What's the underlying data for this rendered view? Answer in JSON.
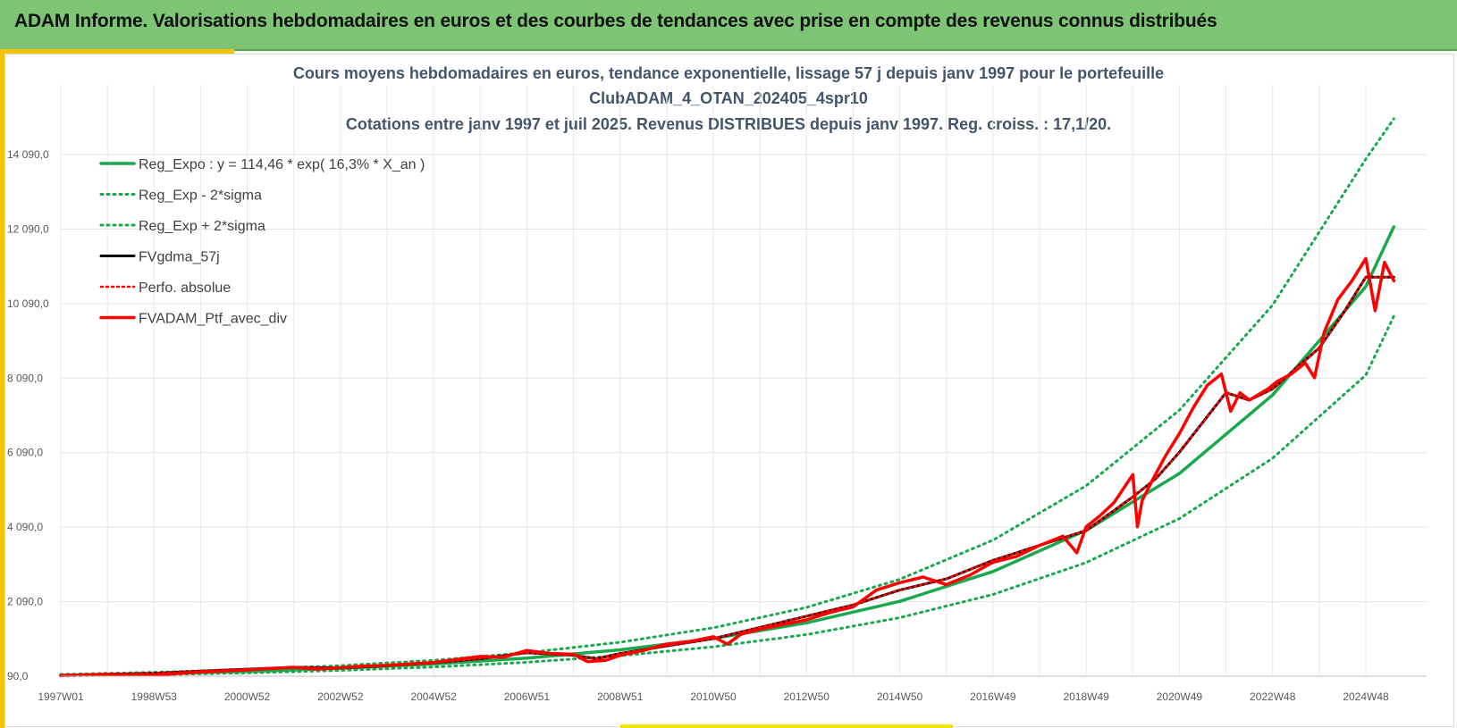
{
  "banner": {
    "title": "ADAM Informe. Valorisations hebdomadaires en euros et des courbes de tendances avec prise en compte des revenus connus distribués"
  },
  "colors": {
    "banner_bg": "#7dc574",
    "accent_yellow": "#f2c500",
    "trend_green": "#1aa84e",
    "fv_black": "#000000",
    "portfolio_red": "#ff0000",
    "title_text": "#44546a"
  },
  "chart_data": {
    "type": "line",
    "title": "Cours moyens hebdomadaires  en euros, tendance exponentielle, lissage 57 j depuis janv 1997 pour le portefeuille",
    "subtitle": "ClubADAM_4_OTAN_202405_4spr10",
    "subtitle2": "Cotations  entre janv 1997 et juil 2025. Revenus DISTRIBUES depuis janv 1997. Reg. croiss. : 17,1/20.",
    "xlabel": "",
    "ylabel": "",
    "ylim": [
      90,
      14790
    ],
    "xlim": [
      1997.0,
      2025.6
    ],
    "grid": true,
    "legend_position": "top-left",
    "y_ticks": [
      "90,0",
      "2 090,0",
      "4 090,0",
      "6 090,0",
      "8 090,0",
      "10 090,0",
      "12 090,0",
      "14 090,0"
    ],
    "y_tick_values": [
      90,
      2090,
      4090,
      6090,
      8090,
      10090,
      12090,
      14090
    ],
    "x_ticks": [
      "1997W01",
      "1998W53",
      "2000W52",
      "2002W52",
      "2004W52",
      "2006W51",
      "2008W51",
      "2010W50",
      "2012W50",
      "2014W50",
      "2016W49",
      "2018W49",
      "2020W49",
      "2022W48",
      "2024W48"
    ],
    "x_tick_values": [
      1997.0,
      1999.0,
      2001.0,
      2003.0,
      2005.0,
      2007.0,
      2009.0,
      2011.0,
      2013.0,
      2015.0,
      2017.0,
      2019.0,
      2021.0,
      2023.0,
      2025.0
    ],
    "series": [
      {
        "name": "Reg_Expo : y = 114,46 * exp( 16,3% *  X_an )",
        "style": "solid-green",
        "x": [
          1997,
          1999,
          2001,
          2003,
          2005,
          2007,
          2009,
          2011,
          2013,
          2015,
          2017,
          2019,
          2021,
          2023,
          2025,
          2025.6
        ],
        "values": [
          115,
          159,
          219,
          303,
          418,
          577,
          797,
          1101,
          1520,
          2099,
          2899,
          4004,
          5530,
          7637,
          10547,
          12150
        ]
      },
      {
        "name": "Reg_Exp - 2*sigma",
        "style": "dotted-green",
        "x": [
          1997,
          1999,
          2001,
          2003,
          2005,
          2007,
          2009,
          2011,
          2013,
          2015,
          2017,
          2019,
          2021,
          2023,
          2025,
          2025.6
        ],
        "values": [
          95,
          130,
          178,
          245,
          337,
          464,
          638,
          878,
          1208,
          1660,
          2283,
          3140,
          4318,
          5940,
          8170,
          9750
        ]
      },
      {
        "name": "Reg_Exp + 2*sigma",
        "style": "dotted-green",
        "x": [
          1997,
          1999,
          2001,
          2003,
          2005,
          2007,
          2009,
          2011,
          2013,
          2015,
          2017,
          2019,
          2021,
          2023,
          2025,
          2025.6
        ],
        "values": [
          138,
          192,
          267,
          372,
          517,
          720,
          1000,
          1390,
          1935,
          2690,
          3740,
          5200,
          7230,
          10050,
          13970,
          15050
        ]
      },
      {
        "name": "FVgdma_57j",
        "style": "solid-black",
        "x": [
          1997,
          1998,
          1999,
          2000,
          2001,
          2002,
          2003,
          2004,
          2005,
          2006,
          2007,
          2008,
          2008.5,
          2009,
          2010,
          2011,
          2012,
          2013,
          2014,
          2015,
          2016,
          2017,
          2018,
          2019,
          2020,
          2020.5,
          2021,
          2022,
          2022.5,
          2023,
          2024,
          2024.5,
          2025,
          2025.6
        ],
        "values": [
          110,
          140,
          170,
          230,
          280,
          330,
          310,
          370,
          450,
          560,
          720,
          650,
          560,
          700,
          900,
          1100,
          1400,
          1700,
          2000,
          2400,
          2700,
          3200,
          3600,
          4000,
          4900,
          5400,
          6100,
          7700,
          7500,
          7800,
          8900,
          9800,
          10800,
          10800
        ]
      },
      {
        "name": "Perfo. absolue",
        "style": "dotted-red",
        "x": [
          1997,
          1998,
          1999,
          2000,
          2001,
          2002,
          2003,
          2004,
          2005,
          2006,
          2007,
          2008,
          2008.5,
          2009,
          2010,
          2011,
          2012,
          2013,
          2014,
          2015,
          2016,
          2017,
          2018,
          2019,
          2020,
          2020.5,
          2021,
          2022,
          2022.5,
          2023,
          2024,
          2024.5,
          2025,
          2025.6
        ],
        "values": [
          110,
          140,
          170,
          230,
          280,
          330,
          310,
          370,
          450,
          560,
          720,
          650,
          560,
          700,
          900,
          1100,
          1400,
          1700,
          2000,
          2400,
          2700,
          3200,
          3600,
          4000,
          4900,
          5400,
          6100,
          7700,
          7500,
          7800,
          8900,
          9800,
          10800,
          10800
        ]
      },
      {
        "name": "FVADAM_Ptf_avec_div",
        "style": "solid-red",
        "x": [
          1997,
          1998,
          1999,
          2000,
          2001,
          2002,
          2002.5,
          2003,
          2003.5,
          2004,
          2005,
          2006,
          2006.5,
          2007,
          2007.5,
          2008,
          2008.3,
          2008.7,
          2009,
          2009.5,
          2010,
          2010.5,
          2011,
          2011.3,
          2011.6,
          2012,
          2013,
          2013.5,
          2014,
          2014.5,
          2015,
          2015.5,
          2016,
          2016.5,
          2017,
          2017.5,
          2018,
          2018.5,
          2018.8,
          2019,
          2019.3,
          2019.6,
          2020,
          2020.1,
          2020.2,
          2020.4,
          2020.7,
          2021,
          2021.3,
          2021.6,
          2021.9,
          2022.1,
          2022.3,
          2022.5,
          2022.7,
          2022.9,
          2023.1,
          2023.4,
          2023.7,
          2023.9,
          2024.1,
          2024.4,
          2024.7,
          2025.0,
          2025.2,
          2025.4,
          2025.6
        ],
        "values": [
          110,
          140,
          120,
          200,
          260,
          330,
          280,
          320,
          360,
          380,
          460,
          620,
          600,
          780,
          700,
          680,
          480,
          520,
          650,
          780,
          950,
          1020,
          1150,
          950,
          1220,
          1350,
          1600,
          1800,
          1950,
          2400,
          2600,
          2750,
          2550,
          2800,
          3150,
          3300,
          3600,
          3850,
          3400,
          4100,
          4400,
          4750,
          5500,
          4100,
          4800,
          5300,
          6000,
          6600,
          7300,
          7900,
          8200,
          7200,
          7700,
          7500,
          7650,
          7800,
          8000,
          8200,
          8500,
          8100,
          9300,
          10200,
          10700,
          11300,
          9900,
          11200,
          10700
        ]
      }
    ]
  }
}
